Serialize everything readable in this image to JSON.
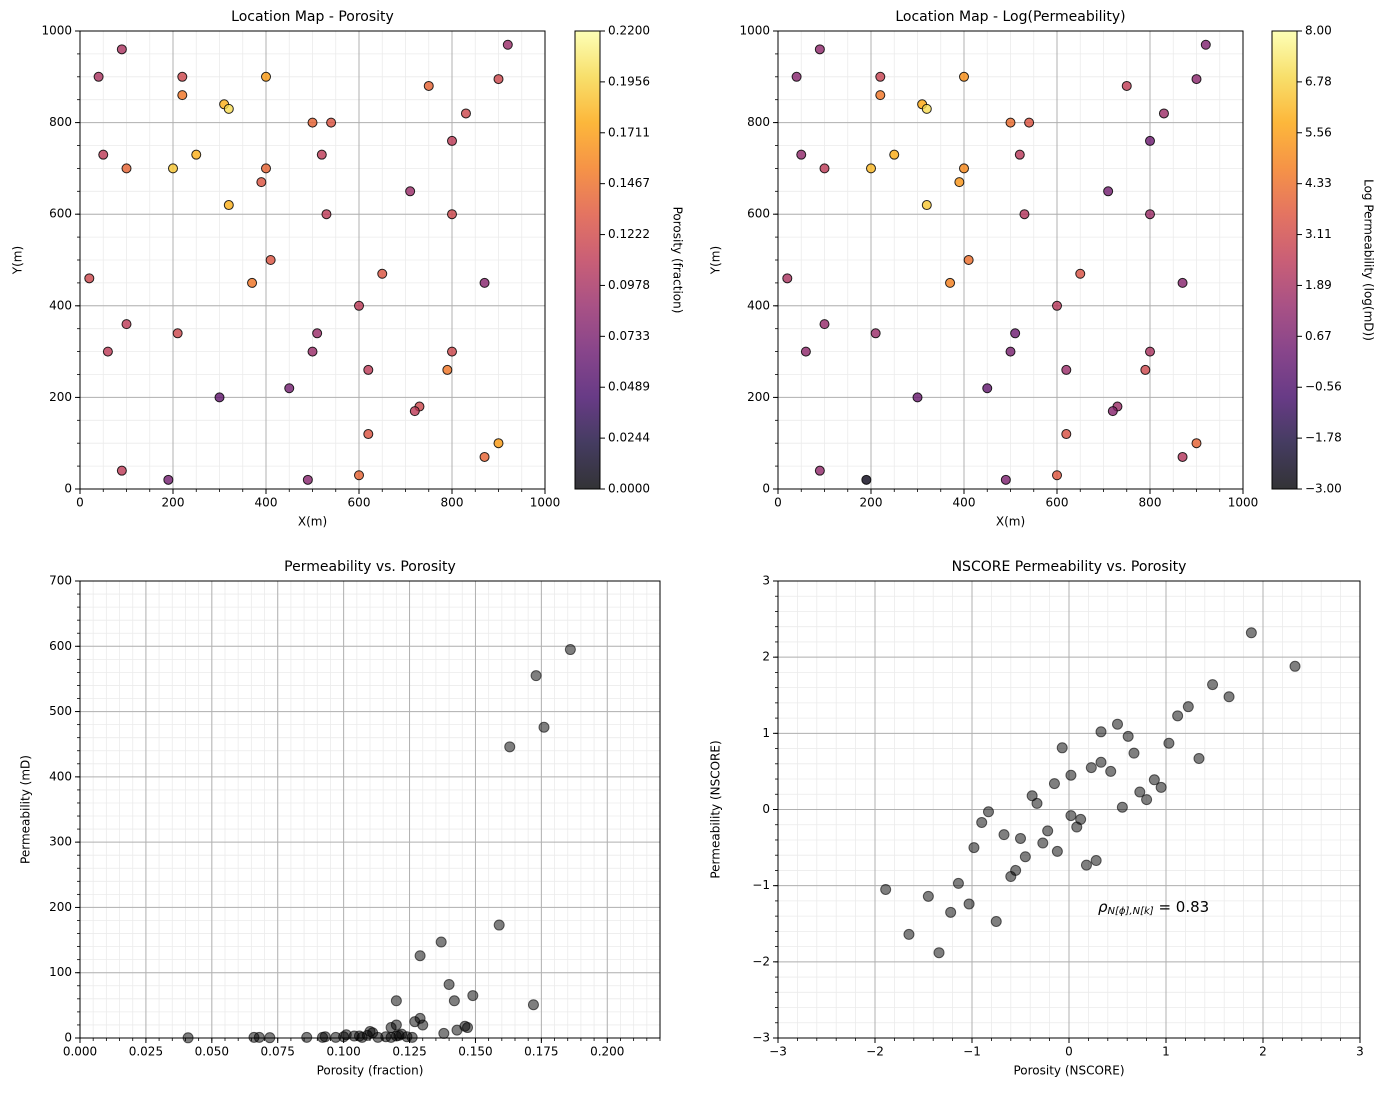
{
  "chart_data": [
    {
      "type": "scatter",
      "title": "Location Map - Porosity",
      "xlabel": "X(m)",
      "ylabel": "Y(m)",
      "x": [
        920,
        90,
        40,
        220,
        400,
        900,
        220,
        750,
        310,
        320,
        830,
        500,
        540,
        800,
        50,
        250,
        520,
        100,
        200,
        400,
        390,
        710,
        320,
        530,
        800,
        410,
        20,
        370,
        650,
        870,
        600,
        100,
        210,
        510,
        60,
        500,
        800,
        620,
        790,
        450,
        300,
        730,
        720,
        620,
        900,
        870,
        90,
        190,
        490,
        600
      ],
      "y": [
        970,
        960,
        900,
        900,
        900,
        895,
        860,
        880,
        840,
        830,
        820,
        800,
        800,
        760,
        730,
        730,
        730,
        700,
        700,
        700,
        670,
        650,
        620,
        600,
        600,
        500,
        460,
        450,
        470,
        450,
        400,
        360,
        340,
        340,
        300,
        300,
        300,
        260,
        260,
        220,
        200,
        180,
        170,
        120,
        100,
        70,
        40,
        20,
        20,
        30
      ],
      "c": [
        0.09,
        0.1,
        0.1,
        0.12,
        0.17,
        0.12,
        0.15,
        0.14,
        0.18,
        0.2,
        0.12,
        0.14,
        0.13,
        0.11,
        0.11,
        0.18,
        0.11,
        0.14,
        0.19,
        0.14,
        0.13,
        0.09,
        0.18,
        0.11,
        0.12,
        0.13,
        0.12,
        0.15,
        0.13,
        0.08,
        0.11,
        0.11,
        0.12,
        0.09,
        0.11,
        0.09,
        0.12,
        0.11,
        0.15,
        0.07,
        0.06,
        0.12,
        0.11,
        0.13,
        0.17,
        0.14,
        0.11,
        0.07,
        0.08,
        0.14
      ],
      "cmap": "inferno",
      "clim": [
        0,
        0.22
      ],
      "cticks": [
        {
          "value": 0,
          "label": "0.0000"
        },
        {
          "value": 0.02444,
          "label": "0.0244"
        },
        {
          "value": 0.04889,
          "label": "0.0489"
        },
        {
          "value": 0.07333,
          "label": "0.0733"
        },
        {
          "value": 0.09778,
          "label": "0.0978"
        },
        {
          "value": 0.12222,
          "label": "0.1222"
        },
        {
          "value": 0.14667,
          "label": "0.1467"
        },
        {
          "value": 0.17111,
          "label": "0.1711"
        },
        {
          "value": 0.19556,
          "label": "0.1956"
        },
        {
          "value": 0.22,
          "label": "0.2200"
        }
      ],
      "clabel": "Porosity (fraction)",
      "xlim": [
        0,
        1000
      ],
      "ylim": [
        0,
        1000
      ],
      "xticks": [
        0,
        200,
        400,
        600,
        800,
        1000
      ],
      "yticks": [
        0,
        200,
        400,
        600,
        800,
        1000
      ],
      "grid": true,
      "minor_divisions": 4
    },
    {
      "type": "scatter",
      "title": "Location Map - Log(Permeability)",
      "xlabel": "X(m)",
      "ylabel": "Y(m)",
      "x": [
        920,
        90,
        40,
        220,
        400,
        900,
        220,
        750,
        310,
        320,
        830,
        500,
        540,
        800,
        50,
        250,
        520,
        100,
        200,
        400,
        390,
        710,
        320,
        530,
        800,
        410,
        20,
        370,
        650,
        870,
        600,
        100,
        210,
        510,
        60,
        500,
        800,
        620,
        790,
        450,
        300,
        730,
        720,
        620,
        900,
        870,
        90,
        190,
        490,
        600
      ],
      "y": [
        970,
        960,
        900,
        900,
        900,
        895,
        860,
        880,
        840,
        830,
        820,
        800,
        800,
        760,
        730,
        730,
        730,
        700,
        700,
        700,
        670,
        650,
        620,
        600,
        600,
        500,
        460,
        450,
        470,
        450,
        400,
        360,
        340,
        340,
        300,
        300,
        300,
        260,
        260,
        220,
        200,
        180,
        170,
        120,
        100,
        70,
        40,
        20,
        20,
        30
      ],
      "c": [
        0.8,
        1.2,
        1.0,
        2.8,
        5.2,
        1.1,
        4.5,
        2.6,
        5.8,
        7.0,
        1.6,
        4.2,
        3.5,
        0.3,
        1.3,
        5.9,
        2.4,
        2.5,
        6.2,
        5.0,
        5.3,
        0.5,
        6.5,
        2.2,
        1.6,
        4.3,
        2.0,
        4.8,
        3.4,
        1.0,
        2.3,
        1.4,
        1.5,
        0.3,
        1.2,
        0.6,
        2.0,
        1.5,
        3.0,
        0.0,
        0.2,
        1.6,
        1.0,
        3.4,
        4.0,
        2.2,
        1.3,
        -2.6,
        0.7,
        3.6
      ],
      "cmap": "inferno",
      "clim": [
        -3,
        8
      ],
      "cticks": [
        {
          "value": -3,
          "label": "−3.00"
        },
        {
          "value": -1.778,
          "label": "−1.78"
        },
        {
          "value": -0.556,
          "label": "−0.56"
        },
        {
          "value": 0.667,
          "label": "0.67"
        },
        {
          "value": 1.889,
          "label": "1.89"
        },
        {
          "value": 3.111,
          "label": "3.11"
        },
        {
          "value": 4.333,
          "label": "4.33"
        },
        {
          "value": 5.556,
          "label": "5.56"
        },
        {
          "value": 6.778,
          "label": "6.78"
        },
        {
          "value": 8,
          "label": "8.00"
        }
      ],
      "clabel": "Log Permeability (log(mD))",
      "xlim": [
        0,
        1000
      ],
      "ylim": [
        0,
        1000
      ],
      "xticks": [
        0,
        200,
        400,
        600,
        800,
        1000
      ],
      "yticks": [
        0,
        200,
        400,
        600,
        800,
        1000
      ],
      "grid": true,
      "minor_divisions": 4
    },
    {
      "type": "scatter",
      "title": "Permeability vs. Porosity",
      "xlabel": "Porosity (fraction)",
      "ylabel": "Permeability (mD)",
      "x": [
        0.186,
        0.173,
        0.176,
        0.163,
        0.159,
        0.137,
        0.129,
        0.14,
        0.149,
        0.12,
        0.142,
        0.172,
        0.129,
        0.127,
        0.13,
        0.12,
        0.118,
        0.146,
        0.147,
        0.143,
        0.138,
        0.11,
        0.111,
        0.101,
        0.104,
        0.122,
        0.12,
        0.124,
        0.093,
        0.092,
        0.086,
        0.066,
        0.068,
        0.072,
        0.041,
        0.1,
        0.107,
        0.113,
        0.116,
        0.121,
        0.126,
        0.097,
        0.106,
        0.109,
        0.118
      ],
      "y": [
        595,
        555,
        476,
        446,
        173,
        147,
        126,
        82,
        65,
        57,
        57,
        51,
        30,
        25,
        20,
        20,
        16,
        18,
        16,
        12,
        7,
        10,
        8,
        5,
        3,
        6,
        3,
        2,
        2,
        1,
        1,
        1,
        1,
        0.5,
        0.3,
        2,
        1,
        1,
        2,
        4,
        1,
        1,
        3,
        4,
        1
      ],
      "color": "#000000",
      "xlim": [
        0,
        0.22
      ],
      "ylim": [
        0,
        700
      ],
      "xticks": [
        {
          "value": 0,
          "label": "0.000"
        },
        {
          "value": 0.025,
          "label": "0.025"
        },
        {
          "value": 0.05,
          "label": "0.050"
        },
        {
          "value": 0.075,
          "label": "0.075"
        },
        {
          "value": 0.1,
          "label": "0.100"
        },
        {
          "value": 0.125,
          "label": "0.125"
        },
        {
          "value": 0.15,
          "label": "0.150"
        },
        {
          "value": 0.175,
          "label": "0.175"
        },
        {
          "value": 0.2,
          "label": "0.200"
        }
      ],
      "yticks": [
        0,
        100,
        200,
        300,
        400,
        500,
        600,
        700
      ],
      "grid": true,
      "minor_divisions": 5
    },
    {
      "type": "scatter",
      "title": "NSCORE Permeability vs. Porosity",
      "xlabel": "Porosity (NSCORE)",
      "ylabel": "Permeability (NSCORE)",
      "x": [
        1.88,
        2.33,
        1.48,
        1.65,
        1.23,
        1.12,
        0.5,
        0.33,
        0.61,
        1.03,
        -0.07,
        0.67,
        1.34,
        0.33,
        0.23,
        0.43,
        0.02,
        -0.15,
        0.88,
        0.95,
        0.73,
        -0.38,
        0.8,
        -0.33,
        0.55,
        -0.83,
        0.02,
        0.12,
        -0.9,
        0.08,
        -0.22,
        -0.67,
        -0.5,
        -0.27,
        -0.98,
        -0.12,
        -0.45,
        0.28,
        0.18,
        -0.55,
        -0.6,
        -1.14,
        -1.89,
        -1.45,
        -1.03,
        -1.22,
        -0.75,
        -1.65,
        -1.34
      ],
      "y": [
        2.32,
        1.88,
        1.64,
        1.48,
        1.35,
        1.23,
        1.12,
        1.02,
        0.96,
        0.87,
        0.81,
        0.74,
        0.67,
        0.62,
        0.55,
        0.5,
        0.45,
        0.34,
        0.39,
        0.29,
        0.23,
        0.18,
        0.13,
        0.08,
        0.03,
        -0.03,
        -0.08,
        -0.13,
        -0.17,
        -0.23,
        -0.28,
        -0.33,
        -0.38,
        -0.44,
        -0.5,
        -0.55,
        -0.62,
        -0.67,
        -0.73,
        -0.8,
        -0.88,
        -0.97,
        -1.05,
        -1.14,
        -1.24,
        -1.35,
        -1.47,
        -1.64,
        -1.88
      ],
      "color": "#000000",
      "xlim": [
        -3,
        3
      ],
      "ylim": [
        -3,
        3
      ],
      "xticks": [
        {
          "value": -3,
          "label": "−3"
        },
        {
          "value": -2,
          "label": "−2"
        },
        {
          "value": -1,
          "label": "−1"
        },
        0,
        1,
        2,
        3
      ],
      "yticks": [
        {
          "value": -3,
          "label": "−3"
        },
        {
          "value": -2,
          "label": "−2"
        },
        {
          "value": -1,
          "label": "−1"
        },
        0,
        1,
        2,
        3
      ],
      "grid": true,
      "minor_divisions": 5,
      "annotation": {
        "symbol": "ρ",
        "subscript": "N[ϕ],N[k]",
        "text": " = 0.83"
      }
    }
  ]
}
